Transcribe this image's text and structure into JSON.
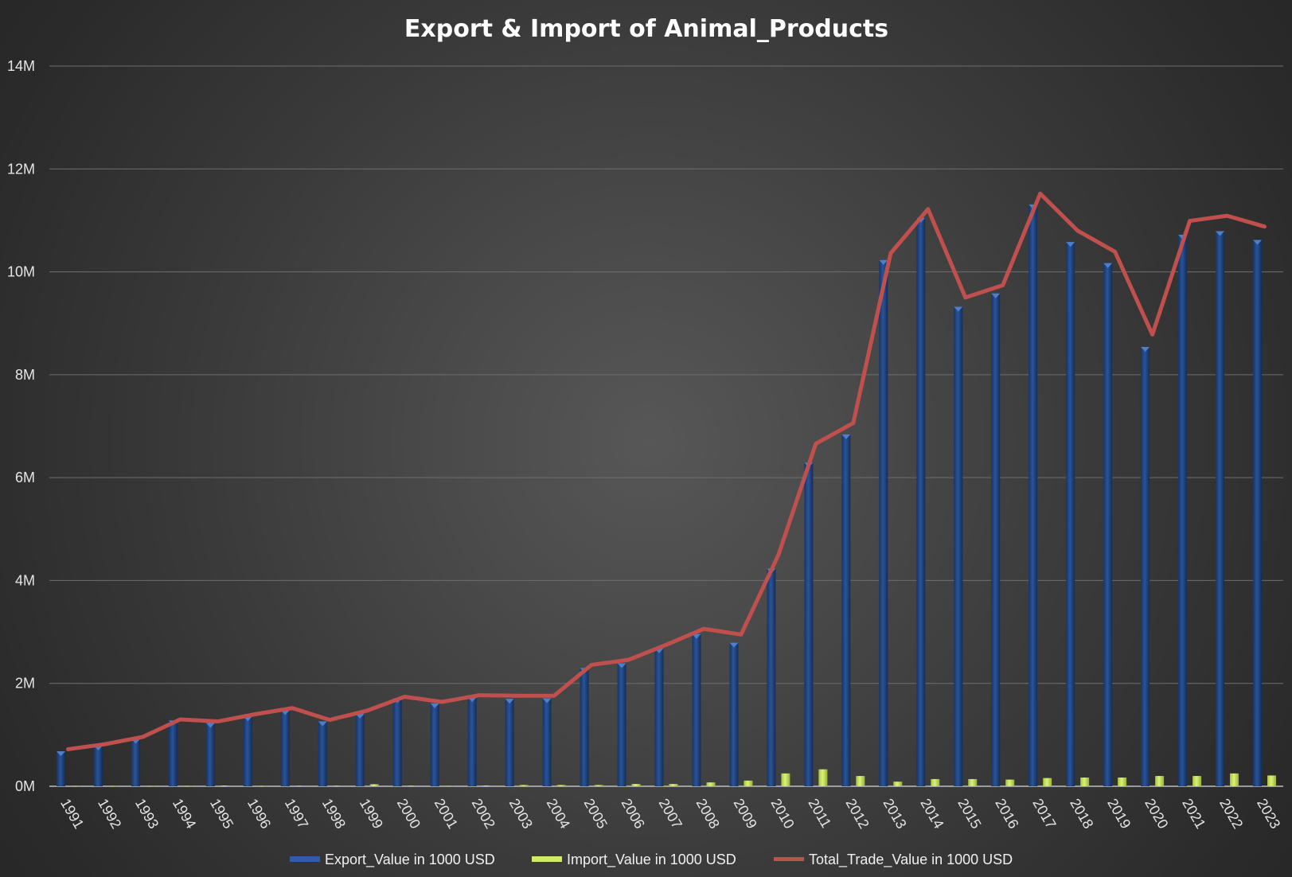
{
  "chart_data": {
    "type": "bar",
    "title": "Export & Import of Animal_Products",
    "xlabel": "",
    "ylabel": "",
    "ylim": [
      0,
      14000000
    ],
    "y_ticks": [
      {
        "value": 0,
        "label": "0M"
      },
      {
        "value": 2000000,
        "label": "2M"
      },
      {
        "value": 4000000,
        "label": "4M"
      },
      {
        "value": 6000000,
        "label": "6M"
      },
      {
        "value": 8000000,
        "label": "8M"
      },
      {
        "value": 10000000,
        "label": "10M"
      },
      {
        "value": 12000000,
        "label": "12M"
      },
      {
        "value": 14000000,
        "label": "14M"
      }
    ],
    "grid": true,
    "legend_position": "bottom",
    "categories": [
      "1991",
      "1992",
      "1993",
      "1994",
      "1995",
      "1996",
      "1997",
      "1998",
      "1999",
      "2000",
      "2001",
      "2002",
      "2003",
      "2004",
      "2005",
      "2006",
      "2007",
      "2008",
      "2009",
      "2010",
      "2011",
      "2012",
      "2013",
      "2014",
      "2015",
      "2016",
      "2017",
      "2018",
      "2019",
      "2020",
      "2021",
      "2022",
      "2023"
    ],
    "series": [
      {
        "name": "Export_Value in 1000 USD",
        "kind": "bar",
        "color": "#1f3f7a",
        "values": [
          680000,
          790000,
          920000,
          1280000,
          1230000,
          1360000,
          1480000,
          1260000,
          1410000,
          1710000,
          1610000,
          1730000,
          1700000,
          1710000,
          2300000,
          2390000,
          2680000,
          2960000,
          2790000,
          4230000,
          6290000,
          6840000,
          10230000,
          11050000,
          9320000,
          9580000,
          11310000,
          10580000,
          10170000,
          8540000,
          10720000,
          10790000,
          10620000
        ]
      },
      {
        "name": "Import_Value in 1000 USD",
        "kind": "bar",
        "color": "#c6e25a",
        "values": [
          2000,
          3000,
          4000,
          5000,
          15000,
          6000,
          10000,
          12000,
          40000,
          12000,
          8000,
          15000,
          25000,
          25000,
          25000,
          45000,
          45000,
          75000,
          110000,
          250000,
          330000,
          200000,
          90000,
          140000,
          140000,
          130000,
          160000,
          170000,
          170000,
          200000,
          200000,
          250000,
          210000
        ]
      },
      {
        "name": "Total_Trade_Value in 1000 USD",
        "kind": "line",
        "color": "#c0504d",
        "values": [
          720000,
          820000,
          960000,
          1300000,
          1260000,
          1400000,
          1520000,
          1290000,
          1470000,
          1740000,
          1640000,
          1770000,
          1760000,
          1760000,
          2360000,
          2460000,
          2750000,
          3060000,
          2950000,
          4500000,
          6660000,
          7060000,
          10360000,
          11220000,
          9500000,
          9740000,
          11520000,
          10800000,
          10390000,
          8780000,
          10990000,
          11090000,
          10880000
        ]
      }
    ]
  }
}
